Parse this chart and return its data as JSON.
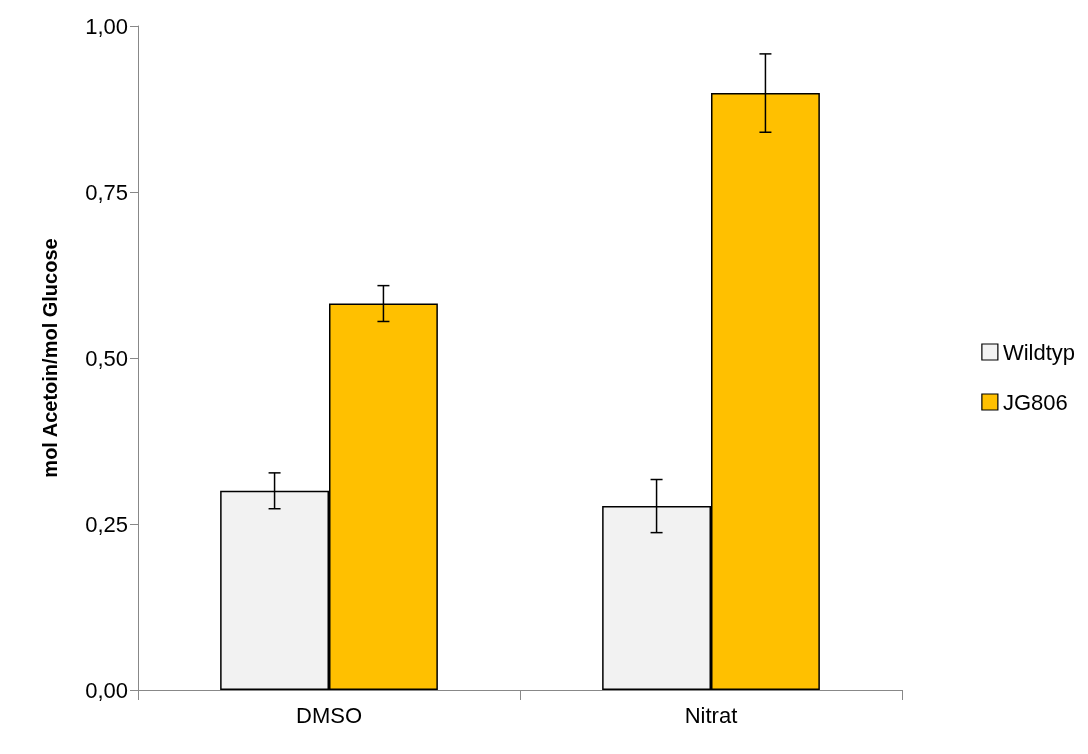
{
  "chart_data": {
    "type": "bar",
    "ylabel": "mol Acetoin/mol Glucose",
    "categories": [
      "DMSO",
      "Nitrat"
    ],
    "series": [
      {
        "name": "Wildtyp",
        "color": "#f2f2f2",
        "values": [
          0.3,
          0.277
        ],
        "errors": [
          0.027,
          0.04
        ]
      },
      {
        "name": "JG806",
        "color": "#ffc000",
        "values": [
          0.582,
          0.899
        ],
        "errors": [
          0.027,
          0.059
        ]
      }
    ],
    "ylim": [
      0,
      1
    ],
    "yticks": [
      {
        "value": 0,
        "label": "0,00"
      },
      {
        "value": 0.25,
        "label": "0,25"
      },
      {
        "value": 0.5,
        "label": "0,50"
      },
      {
        "value": 0.75,
        "label": "0,75"
      },
      {
        "value": 1,
        "label": "1,00"
      }
    ],
    "grid": false,
    "legend": "right"
  }
}
